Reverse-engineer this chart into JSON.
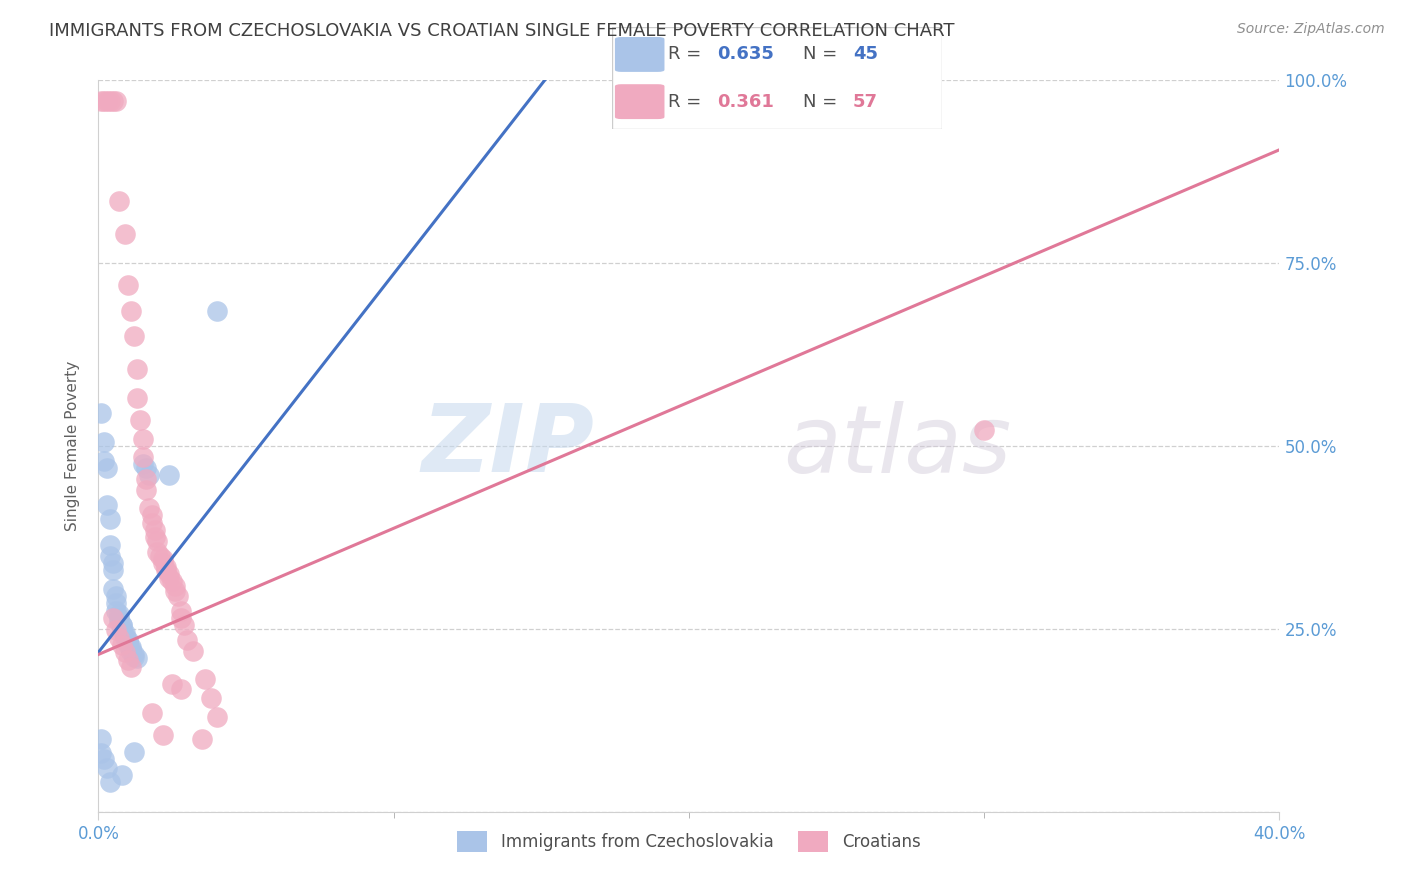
{
  "title": "IMMIGRANTS FROM CZECHOSLOVAKIA VS CROATIAN SINGLE FEMALE POVERTY CORRELATION CHART",
  "source": "Source: ZipAtlas.com",
  "ylabel": "Single Female Poverty",
  "xlim": [
    0.0,
    0.4
  ],
  "ylim": [
    0.0,
    1.0
  ],
  "xticks": [
    0.0,
    0.4
  ],
  "xtick_labels": [
    "0.0%",
    "40.0%"
  ],
  "yticks": [
    0.0,
    0.25,
    0.5,
    0.75,
    1.0
  ],
  "ytick_labels": [
    "",
    "25.0%",
    "50.0%",
    "75.0%",
    "100.0%"
  ],
  "watermark_zip": "ZIP",
  "watermark_atlas": "atlas",
  "legend_blue_R": "0.635",
  "legend_blue_N": "45",
  "legend_pink_R": "0.361",
  "legend_pink_N": "57",
  "blue_color": "#aac4e8",
  "pink_color": "#f0aac0",
  "blue_line_color": "#4472c4",
  "pink_line_color": "#e07898",
  "axis_label_color": "#5b9bd5",
  "title_color": "#404040",
  "blue_scatter": [
    [
      0.001,
      0.545
    ],
    [
      0.002,
      0.505
    ],
    [
      0.002,
      0.48
    ],
    [
      0.003,
      0.47
    ],
    [
      0.003,
      0.42
    ],
    [
      0.004,
      0.4
    ],
    [
      0.004,
      0.365
    ],
    [
      0.004,
      0.35
    ],
    [
      0.005,
      0.34
    ],
    [
      0.005,
      0.33
    ],
    [
      0.005,
      0.305
    ],
    [
      0.006,
      0.295
    ],
    [
      0.006,
      0.285
    ],
    [
      0.006,
      0.275
    ],
    [
      0.007,
      0.27
    ],
    [
      0.007,
      0.265
    ],
    [
      0.007,
      0.26
    ],
    [
      0.008,
      0.255
    ],
    [
      0.008,
      0.255
    ],
    [
      0.008,
      0.248
    ],
    [
      0.009,
      0.245
    ],
    [
      0.009,
      0.24
    ],
    [
      0.009,
      0.238
    ],
    [
      0.01,
      0.235
    ],
    [
      0.01,
      0.232
    ],
    [
      0.01,
      0.23
    ],
    [
      0.01,
      0.228
    ],
    [
      0.011,
      0.225
    ],
    [
      0.011,
      0.222
    ],
    [
      0.011,
      0.218
    ],
    [
      0.012,
      0.215
    ],
    [
      0.012,
      0.212
    ],
    [
      0.013,
      0.21
    ],
    [
      0.015,
      0.475
    ],
    [
      0.016,
      0.47
    ],
    [
      0.017,
      0.46
    ],
    [
      0.024,
      0.46
    ],
    [
      0.04,
      0.685
    ],
    [
      0.001,
      0.1
    ],
    [
      0.012,
      0.082
    ],
    [
      0.001,
      0.08
    ],
    [
      0.002,
      0.072
    ],
    [
      0.003,
      0.06
    ],
    [
      0.008,
      0.05
    ],
    [
      0.004,
      0.04
    ]
  ],
  "pink_scatter": [
    [
      0.001,
      0.972
    ],
    [
      0.002,
      0.972
    ],
    [
      0.003,
      0.972
    ],
    [
      0.004,
      0.972
    ],
    [
      0.005,
      0.972
    ],
    [
      0.006,
      0.972
    ],
    [
      0.007,
      0.835
    ],
    [
      0.009,
      0.79
    ],
    [
      0.01,
      0.72
    ],
    [
      0.011,
      0.685
    ],
    [
      0.012,
      0.65
    ],
    [
      0.013,
      0.605
    ],
    [
      0.013,
      0.565
    ],
    [
      0.014,
      0.535
    ],
    [
      0.015,
      0.51
    ],
    [
      0.015,
      0.485
    ],
    [
      0.016,
      0.455
    ],
    [
      0.016,
      0.44
    ],
    [
      0.017,
      0.415
    ],
    [
      0.018,
      0.405
    ],
    [
      0.018,
      0.395
    ],
    [
      0.019,
      0.385
    ],
    [
      0.019,
      0.375
    ],
    [
      0.02,
      0.37
    ],
    [
      0.02,
      0.355
    ],
    [
      0.021,
      0.35
    ],
    [
      0.022,
      0.345
    ],
    [
      0.022,
      0.34
    ],
    [
      0.023,
      0.335
    ],
    [
      0.023,
      0.33
    ],
    [
      0.024,
      0.325
    ],
    [
      0.024,
      0.32
    ],
    [
      0.025,
      0.315
    ],
    [
      0.026,
      0.308
    ],
    [
      0.026,
      0.302
    ],
    [
      0.027,
      0.295
    ],
    [
      0.028,
      0.275
    ],
    [
      0.028,
      0.265
    ],
    [
      0.029,
      0.255
    ],
    [
      0.03,
      0.235
    ],
    [
      0.032,
      0.22
    ],
    [
      0.036,
      0.182
    ],
    [
      0.038,
      0.155
    ],
    [
      0.04,
      0.13
    ],
    [
      0.3,
      0.522
    ],
    [
      0.005,
      0.265
    ],
    [
      0.006,
      0.248
    ],
    [
      0.007,
      0.238
    ],
    [
      0.008,
      0.228
    ],
    [
      0.009,
      0.218
    ],
    [
      0.01,
      0.208
    ],
    [
      0.011,
      0.198
    ],
    [
      0.025,
      0.175
    ],
    [
      0.028,
      0.168
    ],
    [
      0.018,
      0.135
    ],
    [
      0.022,
      0.105
    ],
    [
      0.035,
      0.1
    ]
  ],
  "blue_line_x": [
    0.0,
    0.155
  ],
  "blue_line_y": [
    0.218,
    1.02
  ],
  "pink_line_x": [
    0.0,
    0.4
  ],
  "pink_line_y": [
    0.215,
    0.905
  ],
  "figsize": [
    14.06,
    8.92
  ],
  "dpi": 100
}
